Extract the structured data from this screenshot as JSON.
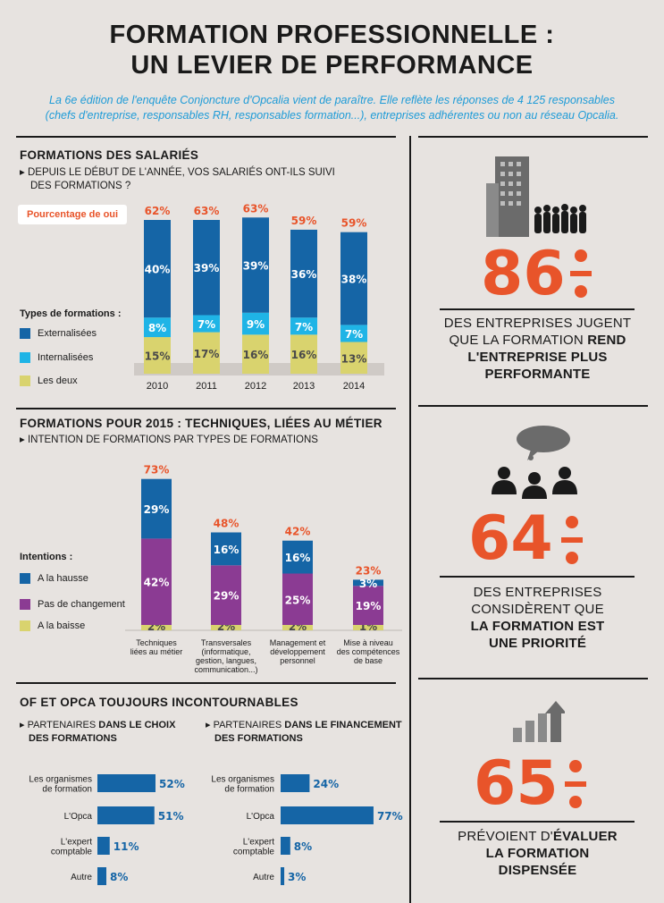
{
  "title_line1": "FORMATION PROFESSIONNELLE :",
  "title_line2": "UN LEVIER DE PERFORMANCE",
  "intro_line1": "La 6e édition de l'enquête Conjoncture d'Opcalia vient de paraître. Elle reflète les réponses de 4 125 responsables",
  "intro_line2": "(chefs d'entreprise, responsables RH, responsables formation...), entreprises adhérentes ou non au réseau Opcalia.",
  "colors": {
    "dark_blue": "#1565a6",
    "light_blue": "#1fb4e6",
    "olive": "#d9d36e",
    "purple": "#8b3b93",
    "orange": "#e8542a"
  },
  "section1": {
    "heading": "FORMATIONS DES SALARIÉS",
    "sub1": "▸ DEPUIS LE DÉBUT DE L'ANNÉE, VOS SALARIÉS ONT-ILS SUIVI",
    "sub2": "DES FORMATIONS ?",
    "badge": "Pourcentage de oui",
    "legend_title": "Types de formations :",
    "legend": [
      "Externalisées",
      "Internalisées",
      "Les deux"
    ]
  },
  "section2": {
    "heading": "FORMATIONS POUR 2015 : TECHNIQUES, LIÉES AU MÉTIER",
    "sub1": "▸ INTENTION DE FORMATIONS PAR TYPES DE FORMATIONS",
    "legend_title": "Intentions :",
    "legend": [
      "A la hausse",
      "Pas de changement",
      "A la baisse"
    ]
  },
  "section3": {
    "heading": "OF ET OPCA TOUJOURS INCONTOURNABLES",
    "left_h1": "▸ PARTENAIRES ",
    "left_h1b": "DANS LE CHOIX",
    "left_h2": "DES FORMATIONS",
    "right_h1": "▸ PARTENAIRES ",
    "right_h1b": "DANS LE FINANCEMENT",
    "right_h2": "DES FORMATIONS"
  },
  "stats": [
    {
      "value": "86",
      "pct": "%",
      "line1": "DES ENTREPRISES JUGENT",
      "line2a": "QUE LA FORMATION ",
      "line2b": "REND",
      "line3": "L'ENTREPRISE PLUS",
      "line4": "PERFORMANTE"
    },
    {
      "value": "64",
      "pct": "%",
      "line1": "DES ENTREPRISES",
      "line2": "CONSIDÈRENT QUE",
      "line3": "LA FORMATION EST",
      "line4": "UNE PRIORITÉ"
    },
    {
      "value": "65",
      "pct": "%",
      "line1a": "PRÉVOIENT D'",
      "line1b": "ÉVALUER",
      "line2": "LA FORMATION",
      "line3": "DISPENSÉE"
    }
  ],
  "chart_data": [
    {
      "type": "bar",
      "stacked": true,
      "categories": [
        "2010",
        "2011",
        "2012",
        "2013",
        "2014"
      ],
      "totals": [
        62,
        63,
        63,
        59,
        59
      ],
      "series": [
        {
          "name": "Les deux",
          "values": [
            15,
            17,
            16,
            16,
            13
          ]
        },
        {
          "name": "Internalisées",
          "values": [
            8,
            7,
            9,
            7,
            7
          ]
        },
        {
          "name": "Externalisées",
          "values": [
            40,
            39,
            39,
            36,
            38
          ]
        }
      ],
      "unit": "%"
    },
    {
      "type": "bar",
      "stacked": true,
      "categories": [
        [
          "Techniques",
          "liées au métier"
        ],
        [
          "Transversales",
          "(informatique,",
          "gestion, langues,",
          "communication...)"
        ],
        [
          "Management et",
          "développement",
          "personnel"
        ],
        [
          "Mise à niveau",
          "des compétences",
          "de base"
        ]
      ],
      "totals": [
        73,
        48,
        42,
        23
      ],
      "series": [
        {
          "name": "A la baisse",
          "values": [
            2,
            2,
            2,
            1
          ]
        },
        {
          "name": "Pas de changement",
          "values": [
            42,
            29,
            25,
            19
          ]
        },
        {
          "name": "A la hausse",
          "values": [
            29,
            16,
            16,
            3
          ]
        }
      ],
      "unit": "%"
    },
    {
      "type": "bar",
      "orientation": "horizontal",
      "categories": [
        [
          "Les organismes",
          "de formation"
        ],
        [
          "L'Opca"
        ],
        [
          "L'expert",
          "comptable"
        ],
        [
          "Autre"
        ]
      ],
      "values": [
        52,
        51,
        11,
        8
      ],
      "unit": "%"
    },
    {
      "type": "bar",
      "orientation": "horizontal",
      "categories": [
        [
          "Les organismes",
          "de formation"
        ],
        [
          "L'Opca"
        ],
        [
          "L'expert",
          "comptable"
        ],
        [
          "Autre"
        ]
      ],
      "values": [
        24,
        77,
        8,
        3
      ],
      "unit": "%"
    }
  ]
}
